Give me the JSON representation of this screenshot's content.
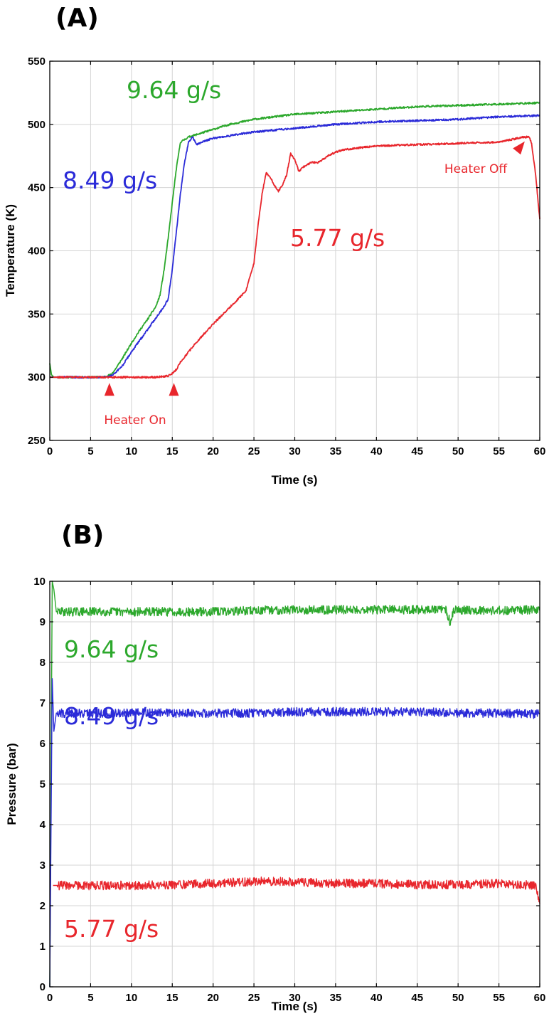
{
  "chart_data": [
    {
      "panel": "(A)",
      "type": "line",
      "xlabel": "Time (s)",
      "ylabel": "Temperature (K)",
      "xlim": [
        0,
        60
      ],
      "ylim": [
        250,
        550
      ],
      "xticks": [
        0,
        5,
        10,
        15,
        20,
        25,
        30,
        35,
        40,
        45,
        50,
        55,
        60
      ],
      "yticks": [
        250,
        300,
        350,
        400,
        450,
        500,
        550
      ],
      "grid": true,
      "series": [
        {
          "name": "9.64 g/s",
          "color": "#2ca82c",
          "x": [
            0,
            0.2,
            0.5,
            1,
            3,
            5,
            6.5,
            7,
            7.5,
            8,
            9,
            10,
            11,
            12,
            13,
            13.5,
            14,
            14.5,
            15,
            15.5,
            16,
            17,
            18,
            20,
            22,
            25,
            30,
            35,
            40,
            45,
            50,
            55,
            60
          ],
          "y": [
            311,
            302,
            300,
            300,
            300,
            300,
            300,
            301,
            302,
            306,
            316,
            327,
            337,
            346,
            356,
            365,
            385,
            410,
            438,
            465,
            486,
            490,
            492,
            496,
            500,
            504,
            508,
            510,
            512,
            514,
            515,
            516,
            517
          ]
        },
        {
          "name": "8.49 g/s",
          "color": "#2b2bd8",
          "x": [
            0,
            1,
            3,
            5,
            7,
            7.5,
            8,
            9,
            10,
            11,
            12,
            13,
            14,
            14.5,
            15,
            15.5,
            16,
            16.5,
            17,
            17.5,
            18,
            19,
            20,
            22,
            25,
            30,
            35,
            40,
            45,
            50,
            55,
            60
          ],
          "y": [
            300,
            300,
            300,
            300,
            300,
            301,
            303,
            310,
            320,
            329,
            338,
            347,
            356,
            362,
            385,
            415,
            445,
            470,
            486,
            490,
            484,
            487,
            489,
            491,
            494,
            497,
            500,
            502,
            503,
            504,
            506,
            507
          ]
        },
        {
          "name": "5.77 g/s",
          "color": "#e8262c",
          "x": [
            0,
            5,
            10,
            13,
            14.5,
            15,
            15.5,
            16,
            17,
            18,
            20,
            22,
            24,
            25,
            25.5,
            26,
            26.5,
            27,
            27.5,
            28,
            28.5,
            29,
            29.5,
            30,
            30.5,
            31,
            32,
            33,
            34,
            35,
            36,
            40,
            45,
            50,
            55,
            58,
            58.7,
            59,
            59.5,
            60
          ],
          "y": [
            300,
            300,
            300,
            300,
            301,
            303,
            306,
            312,
            320,
            328,
            342,
            355,
            368,
            390,
            420,
            445,
            462,
            458,
            452,
            447,
            452,
            460,
            477,
            472,
            463,
            466,
            470,
            470,
            475,
            478,
            480,
            483,
            484,
            485,
            486,
            490,
            490,
            485,
            460,
            425
          ]
        }
      ],
      "annotations": [
        {
          "text": "Heater On",
          "markers": [
            {
              "x": 7.3,
              "y": 300
            },
            {
              "x": 15.2,
              "y": 300
            }
          ]
        },
        {
          "text": "Heater Off",
          "markers": [
            {
              "x": 58.6,
              "y": 490
            }
          ]
        }
      ]
    },
    {
      "panel": "(B)",
      "type": "line",
      "xlabel": "Time (s)",
      "ylabel": "Pressure (bar)",
      "xlim": [
        0,
        60
      ],
      "ylim": [
        0,
        10
      ],
      "xticks": [
        0,
        5,
        10,
        15,
        20,
        25,
        30,
        35,
        40,
        45,
        50,
        55,
        60
      ],
      "yticks": [
        0,
        1,
        2,
        3,
        4,
        5,
        6,
        7,
        8,
        9,
        10
      ],
      "grid": true,
      "series": [
        {
          "name": "9.64 g/s",
          "color": "#2ca82c",
          "x": [
            0,
            0.3,
            0.5,
            0.8,
            1,
            5,
            10,
            15,
            20,
            25,
            30,
            35,
            40,
            45,
            48.5,
            49,
            49.5,
            50,
            55,
            60
          ],
          "y": [
            0,
            10,
            9.8,
            9.25,
            9.25,
            9.25,
            9.25,
            9.25,
            9.25,
            9.28,
            9.3,
            9.3,
            9.3,
            9.3,
            9.3,
            9.0,
            9.3,
            9.3,
            9.28,
            9.3
          ]
        },
        {
          "name": "8.49 g/s",
          "color": "#2b2bd8",
          "x": [
            0,
            0.3,
            0.5,
            0.8,
            1,
            5,
            10,
            15,
            20,
            25,
            30,
            35,
            40,
            45,
            50,
            55,
            60
          ],
          "y": [
            0,
            7.6,
            6.3,
            6.75,
            6.75,
            6.75,
            6.75,
            6.75,
            6.75,
            6.75,
            6.78,
            6.78,
            6.78,
            6.78,
            6.75,
            6.75,
            6.72
          ]
        },
        {
          "name": "5.77 g/s",
          "color": "#e8262c",
          "x": [
            0.4,
            0.6,
            1,
            5,
            10,
            15,
            20,
            25,
            28,
            30,
            35,
            40,
            45,
            50,
            55,
            59.5,
            60
          ],
          "y": [
            2.5,
            2.5,
            2.5,
            2.5,
            2.5,
            2.52,
            2.55,
            2.6,
            2.6,
            2.58,
            2.55,
            2.55,
            2.52,
            2.52,
            2.55,
            2.5,
            2.05
          ]
        }
      ]
    }
  ]
}
